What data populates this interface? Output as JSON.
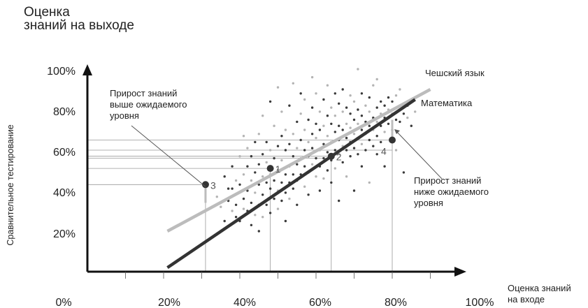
{
  "chart_data": {
    "type": "scatter",
    "title": [
      "Оценка",
      "знаний на выходе"
    ],
    "ylabel": "Сравнительное тестирование",
    "xlabel": [
      "Оценка знаний",
      "на входе"
    ],
    "x_ticks": [
      "0%",
      "20%",
      "40%",
      "60%",
      "80%",
      "100%"
    ],
    "y_ticks": [
      "20%",
      "40%",
      "60%",
      "80%",
      "100%"
    ],
    "xlim": [
      0,
      100
    ],
    "ylim": [
      0,
      100
    ],
    "grid": false,
    "colors": {
      "czech": "#bcbcbc",
      "math": "#333333",
      "points": "#333333",
      "guides": "#999999"
    },
    "series": [
      {
        "name": "Чешский язык",
        "line": [
          [
            21,
            20
          ],
          [
            90,
            90
          ]
        ]
      },
      {
        "name": "Математика",
        "line": [
          [
            21,
            2
          ],
          [
            86,
            85
          ]
        ]
      }
    ],
    "highlight_points": [
      {
        "label": "3",
        "x": 31,
        "y": 43
      },
      {
        "label": "1",
        "x": 48,
        "y": 51
      },
      {
        "label": "2",
        "x": 64,
        "y": 57
      },
      {
        "label": "4",
        "x": 80,
        "y": 65
      }
    ],
    "annotations": [
      {
        "name": "above",
        "lines": [
          "Прирост знаний",
          "выше ожидаемого",
          "уровня"
        ]
      },
      {
        "name": "below",
        "lines": [
          "Прирост знаний",
          "ниже ожидаемого",
          "уровня"
        ]
      }
    ],
    "scatter": [
      [
        34,
        37,
        "g"
      ],
      [
        35,
        32,
        "g"
      ],
      [
        36,
        47,
        "d"
      ],
      [
        36,
        25,
        "d"
      ],
      [
        37,
        41,
        "d"
      ],
      [
        37,
        35,
        "d"
      ],
      [
        38,
        30,
        "g"
      ],
      [
        38,
        52,
        "d"
      ],
      [
        38,
        41,
        "d"
      ],
      [
        39,
        45,
        "g"
      ],
      [
        39,
        33,
        "d"
      ],
      [
        39,
        27,
        "d"
      ],
      [
        40,
        43,
        "d"
      ],
      [
        40,
        57,
        "g"
      ],
      [
        40,
        25,
        "d"
      ],
      [
        41,
        36,
        "d"
      ],
      [
        41,
        48,
        "g"
      ],
      [
        41,
        31,
        "g"
      ],
      [
        41,
        67,
        "g"
      ],
      [
        42,
        52,
        "d"
      ],
      [
        42,
        40,
        "d"
      ],
      [
        42,
        30,
        "d"
      ],
      [
        42,
        61,
        "g"
      ],
      [
        43,
        45,
        "g"
      ],
      [
        43,
        34,
        "d"
      ],
      [
        43,
        23,
        "d"
      ],
      [
        43,
        57,
        "d"
      ],
      [
        44,
        49,
        "d"
      ],
      [
        44,
        39,
        "g"
      ],
      [
        44,
        64,
        "d"
      ],
      [
        44,
        28,
        "g"
      ],
      [
        45,
        43,
        "d"
      ],
      [
        45,
        53,
        "d"
      ],
      [
        45,
        33,
        "d"
      ],
      [
        45,
        68,
        "g"
      ],
      [
        45,
        20,
        "d"
      ],
      [
        46,
        47,
        "g"
      ],
      [
        46,
        58,
        "d"
      ],
      [
        46,
        38,
        "d"
      ],
      [
        46,
        27,
        "g"
      ],
      [
        46,
        77,
        "g"
      ],
      [
        47,
        44,
        "d"
      ],
      [
        47,
        54,
        "g"
      ],
      [
        47,
        33,
        "d"
      ],
      [
        47,
        64,
        "d"
      ],
      [
        48,
        41,
        "d"
      ],
      [
        48,
        48,
        "g"
      ],
      [
        48,
        29,
        "d"
      ],
      [
        48,
        60,
        "g"
      ],
      [
        48,
        84,
        "d"
      ],
      [
        49,
        45,
        "d"
      ],
      [
        49,
        36,
        "d"
      ],
      [
        49,
        56,
        "d"
      ],
      [
        49,
        72,
        "g"
      ],
      [
        50,
        50,
        "d"
      ],
      [
        50,
        40,
        "g"
      ],
      [
        50,
        62,
        "d"
      ],
      [
        50,
        31,
        "g"
      ],
      [
        50,
        91,
        "g"
      ],
      [
        51,
        44,
        "d"
      ],
      [
        51,
        55,
        "g"
      ],
      [
        51,
        67,
        "d"
      ],
      [
        51,
        35,
        "d"
      ],
      [
        51,
        79,
        "g"
      ],
      [
        52,
        48,
        "d"
      ],
      [
        52,
        60,
        "d"
      ],
      [
        52,
        39,
        "d"
      ],
      [
        52,
        70,
        "g"
      ],
      [
        52,
        25,
        "d"
      ],
      [
        53,
        52,
        "g"
      ],
      [
        53,
        44,
        "d"
      ],
      [
        53,
        63,
        "d"
      ],
      [
        53,
        82,
        "d"
      ],
      [
        53,
        36,
        "g"
      ],
      [
        54,
        57,
        "d"
      ],
      [
        54,
        48,
        "d"
      ],
      [
        54,
        68,
        "g"
      ],
      [
        54,
        41,
        "d"
      ],
      [
        54,
        93,
        "g"
      ],
      [
        55,
        53,
        "d"
      ],
      [
        55,
        61,
        "g"
      ],
      [
        55,
        45,
        "d"
      ],
      [
        55,
        74,
        "d"
      ],
      [
        55,
        33,
        "d"
      ],
      [
        56,
        56,
        "g"
      ],
      [
        56,
        65,
        "d"
      ],
      [
        56,
        48,
        "d"
      ],
      [
        56,
        78,
        "g"
      ],
      [
        56,
        88,
        "d"
      ],
      [
        57,
        52,
        "d"
      ],
      [
        57,
        60,
        "d"
      ],
      [
        57,
        70,
        "g"
      ],
      [
        57,
        42,
        "g"
      ],
      [
        57,
        85,
        "g"
      ],
      [
        58,
        57,
        "d"
      ],
      [
        58,
        64,
        "g"
      ],
      [
        58,
        49,
        "d"
      ],
      [
        58,
        75,
        "d"
      ],
      [
        58,
        38,
        "d"
      ],
      [
        59,
        61,
        "d"
      ],
      [
        59,
        53,
        "g"
      ],
      [
        59,
        68,
        "d"
      ],
      [
        59,
        81,
        "d"
      ],
      [
        59,
        96,
        "g"
      ],
      [
        60,
        56,
        "d"
      ],
      [
        60,
        66,
        "g"
      ],
      [
        60,
        47,
        "g"
      ],
      [
        60,
        73,
        "d"
      ],
      [
        60,
        88,
        "g"
      ],
      [
        61,
        60,
        "g"
      ],
      [
        61,
        52,
        "d"
      ],
      [
        61,
        70,
        "d"
      ],
      [
        61,
        79,
        "g"
      ],
      [
        61,
        40,
        "d"
      ],
      [
        62,
        63,
        "d"
      ],
      [
        62,
        56,
        "d"
      ],
      [
        62,
        72,
        "g"
      ],
      [
        62,
        85,
        "d"
      ],
      [
        62,
        46,
        "g"
      ],
      [
        63,
        59,
        "d"
      ],
      [
        63,
        67,
        "g"
      ],
      [
        63,
        77,
        "d"
      ],
      [
        63,
        50,
        "d"
      ],
      [
        63,
        92,
        "g"
      ],
      [
        64,
        64,
        "g"
      ],
      [
        64,
        55,
        "d"
      ],
      [
        64,
        73,
        "d"
      ],
      [
        64,
        81,
        "g"
      ],
      [
        64,
        44,
        "d"
      ],
      [
        65,
        60,
        "d"
      ],
      [
        65,
        69,
        "d"
      ],
      [
        65,
        77,
        "g"
      ],
      [
        65,
        51,
        "g"
      ],
      [
        65,
        88,
        "d"
      ],
      [
        66,
        65,
        "d"
      ],
      [
        66,
        58,
        "g"
      ],
      [
        66,
        72,
        "d"
      ],
      [
        66,
        83,
        "d"
      ],
      [
        66,
        35,
        "d"
      ],
      [
        67,
        62,
        "g"
      ],
      [
        67,
        70,
        "d"
      ],
      [
        67,
        79,
        "g"
      ],
      [
        67,
        54,
        "d"
      ],
      [
        67,
        90,
        "d"
      ],
      [
        68,
        66,
        "d"
      ],
      [
        68,
        73,
        "g"
      ],
      [
        68,
        60,
        "d"
      ],
      [
        68,
        81,
        "d"
      ],
      [
        68,
        47,
        "g"
      ],
      [
        69,
        64,
        "d"
      ],
      [
        69,
        71,
        "g"
      ],
      [
        69,
        78,
        "d"
      ],
      [
        69,
        57,
        "d"
      ],
      [
        69,
        87,
        "g"
      ],
      [
        70,
        68,
        "g"
      ],
      [
        70,
        61,
        "d"
      ],
      [
        70,
        75,
        "d"
      ],
      [
        70,
        84,
        "g"
      ],
      [
        70,
        40,
        "d"
      ],
      [
        71,
        66,
        "d"
      ],
      [
        71,
        73,
        "g"
      ],
      [
        71,
        58,
        "d"
      ],
      [
        71,
        80,
        "d"
      ],
      [
        71,
        100,
        "g"
      ],
      [
        72,
        70,
        "d"
      ],
      [
        72,
        63,
        "g"
      ],
      [
        72,
        77,
        "d"
      ],
      [
        72,
        88,
        "d"
      ],
      [
        72,
        52,
        "d"
      ],
      [
        73,
        68,
        "g"
      ],
      [
        73,
        74,
        "d"
      ],
      [
        73,
        82,
        "g"
      ],
      [
        73,
        60,
        "d"
      ],
      [
        74,
        65,
        "d"
      ],
      [
        74,
        72,
        "d"
      ],
      [
        74,
        79,
        "g"
      ],
      [
        74,
        86,
        "d"
      ],
      [
        74,
        44,
        "g"
      ],
      [
        75,
        70,
        "g"
      ],
      [
        75,
        62,
        "d"
      ],
      [
        75,
        76,
        "d"
      ],
      [
        75,
        92,
        "g"
      ],
      [
        76,
        67,
        "d"
      ],
      [
        76,
        74,
        "g"
      ],
      [
        76,
        81,
        "d"
      ],
      [
        76,
        58,
        "d"
      ],
      [
        76,
        95,
        "g"
      ],
      [
        77,
        72,
        "d"
      ],
      [
        77,
        78,
        "g"
      ],
      [
        77,
        64,
        "d"
      ],
      [
        77,
        84,
        "d"
      ],
      [
        78,
        69,
        "g"
      ],
      [
        78,
        76,
        "d"
      ],
      [
        78,
        82,
        "d"
      ],
      [
        78,
        52,
        "d"
      ],
      [
        79,
        73,
        "d"
      ],
      [
        79,
        80,
        "g"
      ],
      [
        79,
        86,
        "d"
      ],
      [
        80,
        70,
        "d"
      ],
      [
        80,
        78,
        "g"
      ],
      [
        80,
        84,
        "d"
      ],
      [
        81,
        75,
        "d"
      ],
      [
        81,
        87,
        "g"
      ],
      [
        81,
        60,
        "g"
      ],
      [
        82,
        74,
        "d"
      ],
      [
        82,
        80,
        "d"
      ],
      [
        82,
        90,
        "g"
      ],
      [
        83,
        78,
        "d"
      ],
      [
        83,
        49,
        "d"
      ],
      [
        84,
        76,
        "g"
      ],
      [
        84,
        82,
        "d"
      ],
      [
        85,
        72,
        "d"
      ],
      [
        86,
        79,
        "g"
      ]
    ]
  }
}
